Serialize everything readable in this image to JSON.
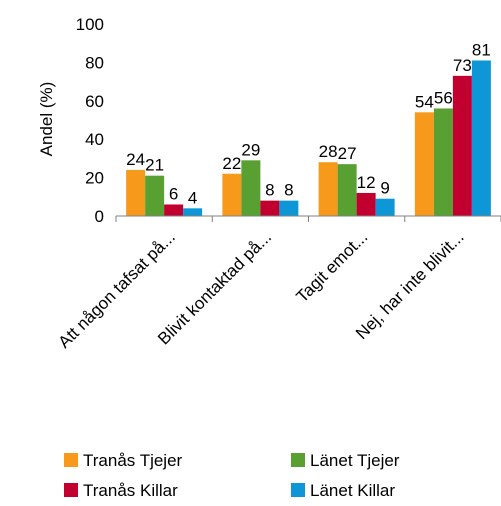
{
  "chart_data": {
    "type": "bar",
    "title": "",
    "xlabel": "",
    "ylabel": "Andel (%)",
    "ylim": [
      0,
      100
    ],
    "yticks": [
      0,
      20,
      40,
      60,
      80,
      100
    ],
    "grid": false,
    "legend_position": "bottom",
    "categories": [
      "Att någon tafsat på...",
      "Blivit kontaktad på...",
      "Tagit emot...",
      "Nej, har inte blivit..."
    ],
    "series": [
      {
        "name": "Tranås Tjejer",
        "color": "#F79A1B",
        "values": [
          24,
          22,
          28,
          54
        ]
      },
      {
        "name": "Länet Tjejer",
        "color": "#58A032",
        "values": [
          21,
          29,
          27,
          56
        ]
      },
      {
        "name": "Tranås Killar",
        "color": "#C2002F",
        "values": [
          6,
          8,
          12,
          73
        ]
      },
      {
        "name": "Länet Killar",
        "color": "#0E96D6",
        "values": [
          4,
          8,
          9,
          81
        ]
      }
    ]
  }
}
